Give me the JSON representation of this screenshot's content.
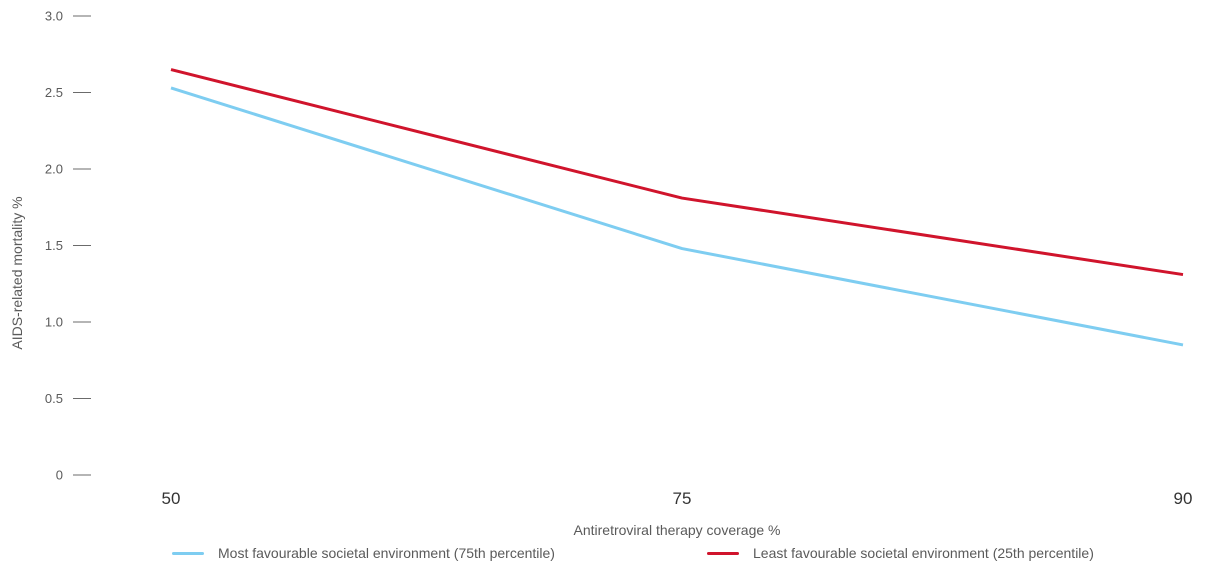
{
  "chart_data": {
    "type": "line",
    "categories": [
      "50",
      "75",
      "90"
    ],
    "series": [
      {
        "name": "Most favourable societal environment (75th percentile)",
        "color": "#7ecdf1",
        "values": [
          2.53,
          1.48,
          0.85
        ]
      },
      {
        "name": "Least favourable societal environment (25th percentile)",
        "color": "#d0142c",
        "values": [
          2.65,
          1.81,
          1.31
        ]
      }
    ],
    "xlabel": "Antiretroviral therapy coverage %",
    "ylabel": "AIDS-related mortality %",
    "ylim": [
      0,
      3.0
    ],
    "yticks": [
      "0",
      "0.5",
      "1.0",
      "1.5",
      "2.0",
      "2.5",
      "3.0"
    ],
    "grid": false,
    "legend": "bottom"
  }
}
